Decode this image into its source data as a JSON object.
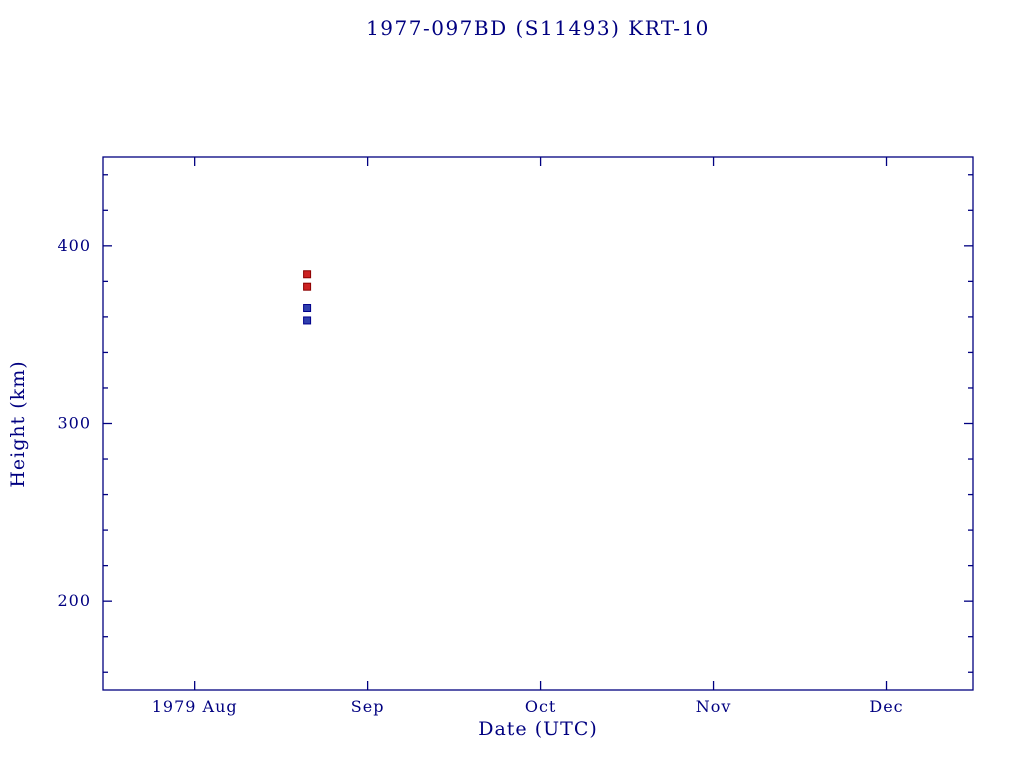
{
  "page": {
    "background": "#ffffff"
  },
  "chart_data": {
    "type": "scatter",
    "title": "1977-097BD (S11493) KRT-10",
    "xlabel": "Date (UTC)",
    "ylabel": "Height (km)",
    "axis_color": "#000080",
    "text_color": "#000080",
    "grid": false,
    "legend_position": "none",
    "marker": "square",
    "x_axis_unit": "months since 1979-08-01",
    "xlim": [
      -0.53,
      4.5
    ],
    "ylim": [
      150,
      450
    ],
    "x_ticks": [
      {
        "value": 0,
        "label": "1979 Aug"
      },
      {
        "value": 1,
        "label": "Sep"
      },
      {
        "value": 2,
        "label": "Oct"
      },
      {
        "value": 3,
        "label": "Nov"
      },
      {
        "value": 4,
        "label": "Dec"
      }
    ],
    "y_ticks": [
      200,
      300,
      400
    ],
    "y_minor_step": 20,
    "series": [
      {
        "name": "upper-red",
        "color": "#cc2222",
        "edge": "#8b0000",
        "points": [
          {
            "x": 0.65,
            "y": 384
          },
          {
            "x": 0.65,
            "y": 377
          }
        ]
      },
      {
        "name": "lower-blue",
        "color": "#2f3fae",
        "edge": "#00008b",
        "points": [
          {
            "x": 0.65,
            "y": 365
          },
          {
            "x": 0.65,
            "y": 358
          }
        ]
      }
    ]
  }
}
